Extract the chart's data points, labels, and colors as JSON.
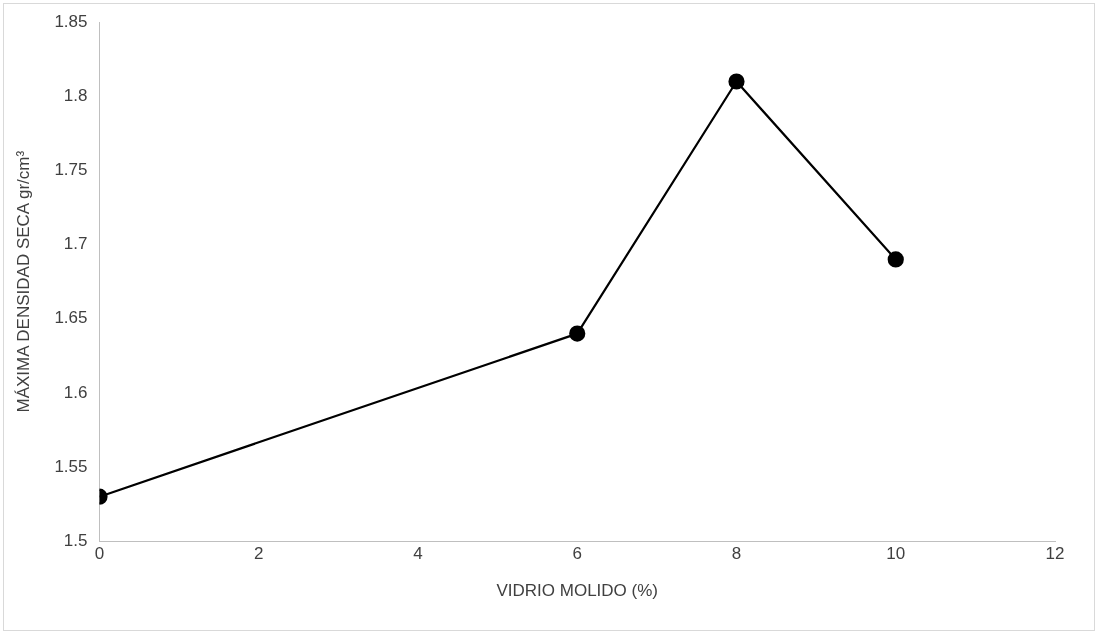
{
  "chart_data": {
    "type": "line",
    "xlabel": "VIDRIO MOLIDO (%)",
    "ylabel": "MÁXIMA DENSIDAD SECA gr/cm³",
    "x": [
      0,
      6,
      8,
      10
    ],
    "series": [
      {
        "color": "#000000",
        "values": [
          1.53,
          1.64,
          1.81,
          1.69
        ]
      }
    ],
    "xlim": [
      0,
      12
    ],
    "xticks": [
      0,
      2,
      4,
      6,
      8,
      10,
      12
    ],
    "ylim": [
      1.5,
      1.85
    ],
    "yticks": [
      1.5,
      1.55,
      1.6,
      1.65,
      1.7,
      1.75,
      1.8,
      1.85
    ],
    "grid": false,
    "legend": false,
    "marker": "circle",
    "line_style": "solid"
  }
}
